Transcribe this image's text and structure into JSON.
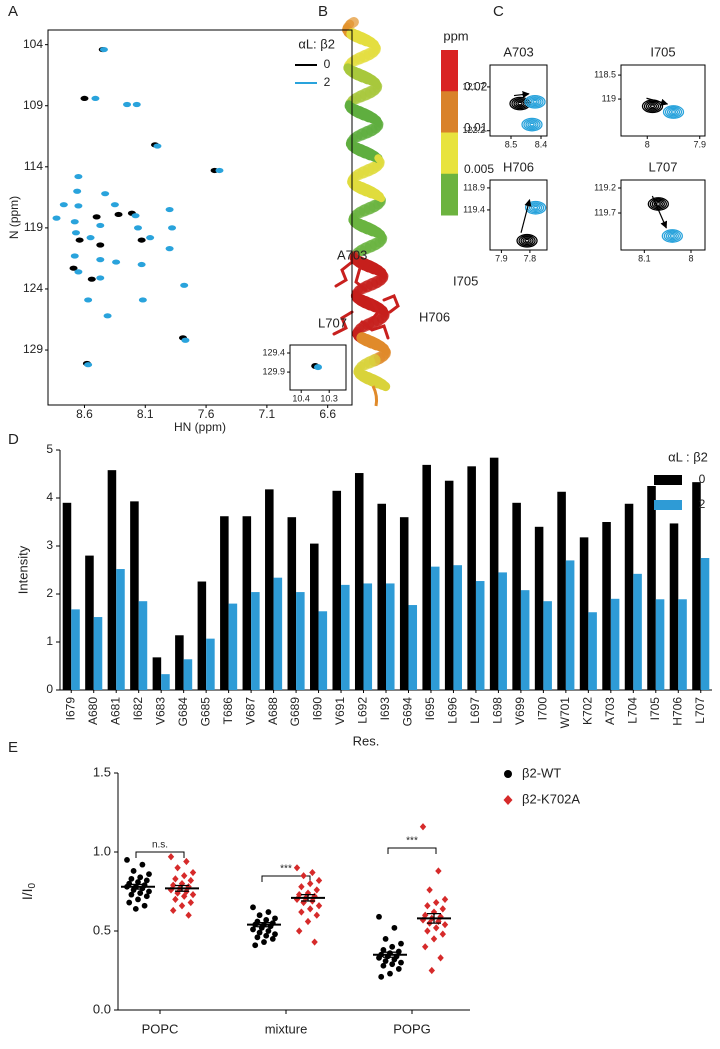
{
  "chart_data": [
    {
      "type": "scatter",
      "panel": "A",
      "xlabel": "HN (ppm)",
      "ylabel": "N (ppm)",
      "xlim": [
        8.9,
        6.4
      ],
      "ylim": [
        133.5,
        102.8
      ],
      "xticks": [
        8.6,
        8.1,
        7.6,
        7.1,
        6.6
      ],
      "yticks": [
        104,
        109,
        114,
        119,
        124,
        129
      ],
      "legend_title": "αL: β2",
      "legend": "top-right",
      "series": [
        {
          "name": "0",
          "color": "#000000",
          "x": [
            8.45,
            8.6,
            8.02,
            7.53,
            8.5,
            8.32,
            8.21,
            8.64,
            8.47,
            8.13,
            8.69,
            8.54,
            7.79,
            8.58
          ],
          "values": [
            104.4,
            108.4,
            112.2,
            114.3,
            118.1,
            117.9,
            117.8,
            120.0,
            120.4,
            120.0,
            122.3,
            123.2,
            128.0,
            130.1
          ]
        },
        {
          "name": "2",
          "color": "#29a3dc",
          "x": [
            8.44,
            8.51,
            8.25,
            8.17,
            8.0,
            7.49,
            8.65,
            8.66,
            8.77,
            8.65,
            8.43,
            8.35,
            8.18,
            7.9,
            8.83,
            8.68,
            8.47,
            8.16,
            7.88,
            8.67,
            8.55,
            8.06,
            7.9,
            8.68,
            8.47,
            8.34,
            8.13,
            8.65,
            8.47,
            7.78,
            8.57,
            8.12,
            8.41,
            7.77,
            8.57
          ],
          "values": [
            104.4,
            108.4,
            108.9,
            108.9,
            112.3,
            114.3,
            114.8,
            116.0,
            117.1,
            117.2,
            116.2,
            117.1,
            118.0,
            117.5,
            118.2,
            118.5,
            118.8,
            119.0,
            119.0,
            119.4,
            119.8,
            119.8,
            120.7,
            121.3,
            121.6,
            121.8,
            122.0,
            122.6,
            123.1,
            123.7,
            124.9,
            124.9,
            126.2,
            128.2,
            130.2
          ]
        }
      ]
    },
    {
      "type": "scatter",
      "xlim": [
        10.44,
        10.24
      ],
      "ylim": [
        130.37,
        129.19
      ],
      "xticks": [
        10.4,
        10.3
      ],
      "yticks": [
        129.4,
        129.9
      ],
      "series": [
        {
          "color": "#000000",
          "x": [
            10.35
          ],
          "values": [
            129.74
          ]
        },
        {
          "color": "#29a3dc",
          "x": [
            10.34
          ],
          "values": [
            129.77
          ]
        }
      ]
    },
    {
      "type": "colorbar",
      "panel": "B",
      "title": "ppm",
      "colors": [
        "#d92323",
        "#d9822a",
        "#e8e33e",
        "#6cb33f"
      ],
      "yticks": [
        0.02,
        0.01,
        0.005
      ],
      "annotations": [
        "A703",
        "I705",
        "L707",
        "H706"
      ]
    },
    {
      "type": "scatter",
      "panel": "C",
      "title": "A703",
      "arrow": true,
      "xlim": [
        8.57,
        8.38
      ],
      "ylim": [
        122.26,
        121.45
      ],
      "xticks": [
        8.5,
        8.4
      ],
      "yticks": [
        121.7,
        122.2
      ],
      "series": [
        {
          "color": "#000000",
          "x": [
            8.47
          ],
          "values": [
            121.89
          ]
        },
        {
          "color": "#29a3dc",
          "x": [
            8.42,
            8.43
          ],
          "values": [
            121.87,
            122.13
          ]
        }
      ]
    },
    {
      "type": "scatter",
      "title": "I705",
      "arrow": true,
      "xlim": [
        8.05,
        7.89
      ],
      "ylim": [
        119.77,
        118.29
      ],
      "xticks": [
        8.0,
        7.9
      ],
      "yticks": [
        118.5,
        119.0
      ],
      "series": [
        {
          "color": "#000000",
          "x": [
            7.99
          ],
          "values": [
            119.15
          ]
        },
        {
          "color": "#29a3dc",
          "x": [
            7.95
          ],
          "values": [
            119.27
          ]
        }
      ]
    },
    {
      "type": "scatter",
      "title": "H706",
      "arrow": true,
      "xlim": [
        7.94,
        7.74
      ],
      "ylim": [
        120.31,
        118.72
      ],
      "xticks": [
        7.9,
        7.8
      ],
      "yticks": [
        118.9,
        119.4
      ],
      "series": [
        {
          "color": "#000000",
          "x": [
            7.81
          ],
          "values": [
            120.1
          ]
        },
        {
          "color": "#29a3dc",
          "x": [
            7.78
          ],
          "values": [
            119.35
          ]
        }
      ]
    },
    {
      "type": "scatter",
      "title": "L707",
      "arrow": true,
      "xlim": [
        8.15,
        7.97
      ],
      "ylim": [
        120.44,
        119.04
      ],
      "xticks": [
        8.1,
        8.0
      ],
      "yticks": [
        119.2,
        119.7
      ],
      "series": [
        {
          "color": "#000000",
          "x": [
            8.07
          ],
          "values": [
            119.52
          ]
        },
        {
          "color": "#29a3dc",
          "x": [
            8.04
          ],
          "values": [
            120.16
          ]
        }
      ]
    },
    {
      "type": "bar",
      "panel": "D",
      "xlabel": "Res.",
      "ylabel": "Intensity",
      "legend_title": "αL : β2",
      "legend": "top-right",
      "categories": [
        "I679",
        "A680",
        "A681",
        "I682",
        "V683",
        "G684",
        "G685",
        "T686",
        "V687",
        "A688",
        "G689",
        "I690",
        "V691",
        "L692",
        "I693",
        "G694",
        "I695",
        "L696",
        "L697",
        "L698",
        "V699",
        "I700",
        "W701",
        "K702",
        "A703",
        "L704",
        "I705",
        "H706",
        "L707"
      ],
      "ylim": [
        0,
        5
      ],
      "yticks": [
        0,
        1,
        2,
        3,
        4,
        5
      ],
      "series": [
        {
          "name": "0",
          "color": "#000000",
          "values": [
            3.9,
            2.8,
            4.58,
            3.93,
            0.68,
            1.14,
            2.26,
            3.62,
            3.62,
            4.18,
            3.6,
            3.05,
            4.15,
            4.52,
            3.88,
            3.6,
            4.69,
            4.36,
            4.66,
            4.84,
            3.9,
            3.4,
            4.13,
            3.18,
            3.5,
            3.88,
            4.25,
            3.47,
            4.33
          ]
        },
        {
          "name": "2",
          "color": "#2e9bd6",
          "values": [
            1.68,
            1.52,
            2.52,
            1.85,
            0.33,
            0.64,
            1.07,
            1.8,
            2.04,
            2.34,
            2.04,
            1.64,
            2.19,
            2.22,
            2.22,
            1.77,
            2.57,
            2.6,
            2.27,
            2.45,
            2.08,
            1.85,
            2.7,
            1.62,
            1.9,
            2.42,
            1.89,
            1.89,
            2.75
          ]
        }
      ]
    },
    {
      "type": "dot",
      "panel": "E",
      "ylabel": "I/I",
      "ylabel_sub": "0",
      "legend": "top-right",
      "categories": [
        "POPC",
        "mixture",
        "POPG"
      ],
      "ylim": [
        0,
        1.5
      ],
      "yticks": [
        {
          "value": 0,
          "label": "0.0"
        },
        0.5,
        {
          "value": 1,
          "label": "1.0"
        },
        1.5
      ],
      "significance": [
        "n.s.",
        "***",
        "***"
      ],
      "series": [
        {
          "name": "β2-WT",
          "color": "#000000",
          "marker": "circle",
          "values": [
            [
              0.95,
              0.92,
              0.88,
              0.86,
              0.84,
              0.83,
              0.82,
              0.81,
              0.8,
              0.79,
              0.78,
              0.78,
              0.77,
              0.76,
              0.75,
              0.74,
              0.73,
              0.72,
              0.7,
              0.68,
              0.66,
              0.64
            ],
            [
              0.65,
              0.62,
              0.6,
              0.58,
              0.57,
              0.56,
              0.55,
              0.54,
              0.54,
              0.53,
              0.52,
              0.51,
              0.5,
              0.49,
              0.48,
              0.47,
              0.46,
              0.45,
              0.43,
              0.41
            ],
            [
              0.59,
              0.52,
              0.45,
              0.42,
              0.4,
              0.38,
              0.37,
              0.36,
              0.35,
              0.34,
              0.34,
              0.33,
              0.32,
              0.31,
              0.3,
              0.29,
              0.28,
              0.26,
              0.23,
              0.21
            ]
          ],
          "means": [
            0.78,
            0.54,
            0.35
          ],
          "errors": [
            0.015,
            0.013,
            0.016
          ]
        },
        {
          "name": "β2-K702A",
          "color": "#d62a2a",
          "marker": "diamond",
          "values": [
            [
              0.97,
              0.94,
              0.9,
              0.87,
              0.85,
              0.83,
              0.82,
              0.8,
              0.79,
              0.78,
              0.77,
              0.76,
              0.75,
              0.74,
              0.73,
              0.72,
              0.7,
              0.68,
              0.66,
              0.63,
              0.6
            ],
            [
              0.9,
              0.87,
              0.85,
              0.82,
              0.8,
              0.78,
              0.76,
              0.74,
              0.73,
              0.72,
              0.71,
              0.7,
              0.69,
              0.68,
              0.66,
              0.64,
              0.62,
              0.6,
              0.56,
              0.5,
              0.43
            ],
            [
              1.16,
              0.88,
              0.76,
              0.7,
              0.68,
              0.66,
              0.64,
              0.62,
              0.6,
              0.59,
              0.58,
              0.57,
              0.56,
              0.55,
              0.54,
              0.52,
              0.5,
              0.48,
              0.45,
              0.4,
              0.33,
              0.25
            ]
          ],
          "means": [
            0.77,
            0.71,
            0.58
          ],
          "errors": [
            0.018,
            0.02,
            0.03
          ]
        }
      ]
    }
  ]
}
